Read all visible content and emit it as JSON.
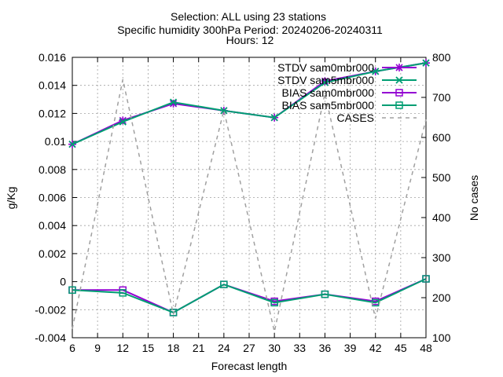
{
  "chart_data": {
    "type": "line",
    "title_lines": [
      "Selection: ALL using    23 stations",
      "Specific humidity 300hPa   Period: 20240206-20240311",
      "Hours: 12"
    ],
    "xlabel": "Forecast length",
    "ylabel": "g/Kg",
    "y2label": "No cases",
    "x": [
      6,
      12,
      18,
      24,
      30,
      36,
      42,
      48
    ],
    "xlim": [
      6,
      48
    ],
    "xticks": [
      6,
      9,
      12,
      15,
      18,
      21,
      24,
      27,
      30,
      33,
      36,
      39,
      42,
      45,
      48
    ],
    "ylim": [
      -0.004,
      0.016
    ],
    "yticks": [
      "-0.004",
      "-0.002",
      "0",
      "0.002",
      "0.004",
      "0.006",
      "0.008",
      "0.01",
      "0.012",
      "0.014",
      "0.016"
    ],
    "y2lim": [
      100,
      800
    ],
    "y2ticks": [
      "100",
      "200",
      "300",
      "400",
      "500",
      "600",
      "700",
      "800"
    ],
    "grid": true,
    "legend_position": "top-right",
    "series": [
      {
        "name": "STDV sam0mbr000",
        "axis": "y",
        "color": "#9400d3",
        "marker": "star",
        "dash": false,
        "values": [
          0.0098,
          0.0115,
          0.0127,
          0.0122,
          0.0117,
          0.0143,
          0.015,
          0.0156
        ]
      },
      {
        "name": "STDV sam5mbr000",
        "axis": "y",
        "color": "#009e73",
        "marker": "x",
        "dash": false,
        "values": [
          0.0098,
          0.0114,
          0.0128,
          0.0122,
          0.0117,
          0.0142,
          0.015,
          0.0156
        ]
      },
      {
        "name": "BIAS sam0mbr000",
        "axis": "y",
        "color": "#9400d3",
        "marker": "square",
        "dash": false,
        "values": [
          -0.0006,
          -0.0006,
          -0.0022,
          -0.0002,
          -0.0014,
          -0.0009,
          -0.0014,
          0.0002
        ]
      },
      {
        "name": "BIAS sam5mbr000",
        "axis": "y",
        "color": "#009e73",
        "marker": "square",
        "dash": false,
        "values": [
          -0.0006,
          -0.0008,
          -0.0022,
          -0.0002,
          -0.0015,
          -0.0009,
          -0.0015,
          0.0002
        ]
      },
      {
        "name": "CASES",
        "axis": "y2",
        "color": "#a0a0a0",
        "marker": "none",
        "dash": true,
        "values": [
          122,
          745,
          158,
          668,
          115,
          710,
          148,
          645
        ]
      }
    ]
  }
}
